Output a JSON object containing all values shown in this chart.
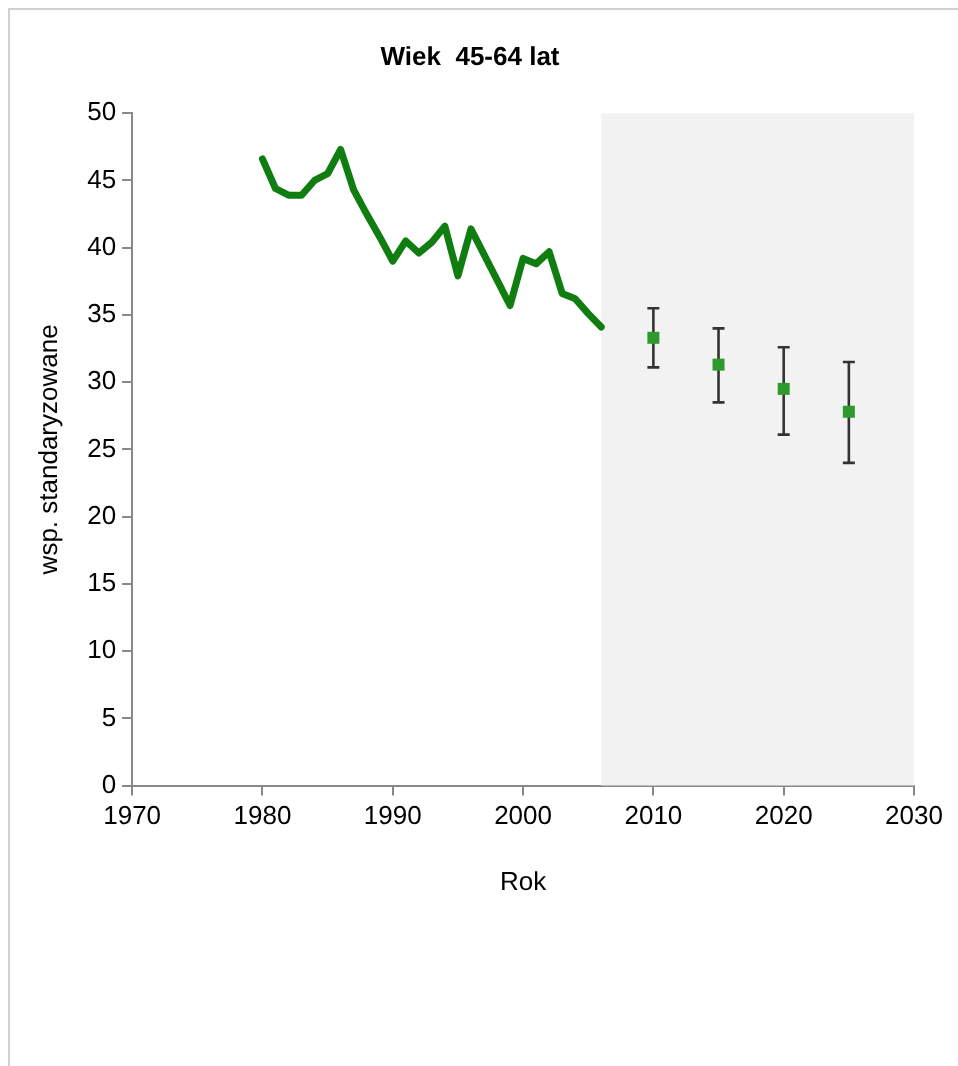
{
  "chart_data": {
    "type": "line",
    "title": "Wiek  45-64 lat",
    "xlabel": "Rok",
    "ylabel": "wsp. standaryzowane",
    "xlim": [
      1970,
      2030
    ],
    "xticks": [
      1970,
      1980,
      1990,
      2000,
      2010,
      2020,
      2030
    ],
    "ylim": [
      0,
      50
    ],
    "yticks": [
      0,
      5,
      10,
      15,
      20,
      25,
      30,
      35,
      40,
      45,
      50
    ],
    "grid": false,
    "legend": false,
    "bands": [
      {
        "axis": "x",
        "from": 2006,
        "to": 2030,
        "color": "#f2f2f2"
      }
    ],
    "series": [
      {
        "color": "#0f7d0f",
        "marker": "none",
        "line_style": "solid",
        "x": [
          1980,
          1981,
          1982,
          1983,
          1984,
          1985,
          1986,
          1987,
          1988,
          1989,
          1990,
          1991,
          1992,
          1993,
          1994,
          1995,
          1996,
          1997,
          1998,
          1999,
          2000,
          2001,
          2002,
          2003,
          2004,
          2005,
          2006
        ],
        "values": [
          46.6,
          44.4,
          43.9,
          43.9,
          45.0,
          45.5,
          47.3,
          44.3,
          42.5,
          40.8,
          39.0,
          40.5,
          39.6,
          40.4,
          41.6,
          37.9,
          41.4,
          39.5,
          37.6,
          35.7,
          39.2,
          38.8,
          39.7,
          36.6,
          36.2,
          35.1,
          34.1
        ]
      },
      {
        "type": "scatter",
        "color": "#2e9a2e",
        "marker": "square",
        "x": [
          2010,
          2015,
          2020,
          2025
        ],
        "values": [
          33.3,
          31.3,
          29.5,
          27.8
        ],
        "errors": [
          [
            31.1,
            35.5
          ],
          [
            28.5,
            34.0
          ],
          [
            26.1,
            32.6
          ],
          [
            24.0,
            31.5
          ]
        ]
      }
    ]
  }
}
